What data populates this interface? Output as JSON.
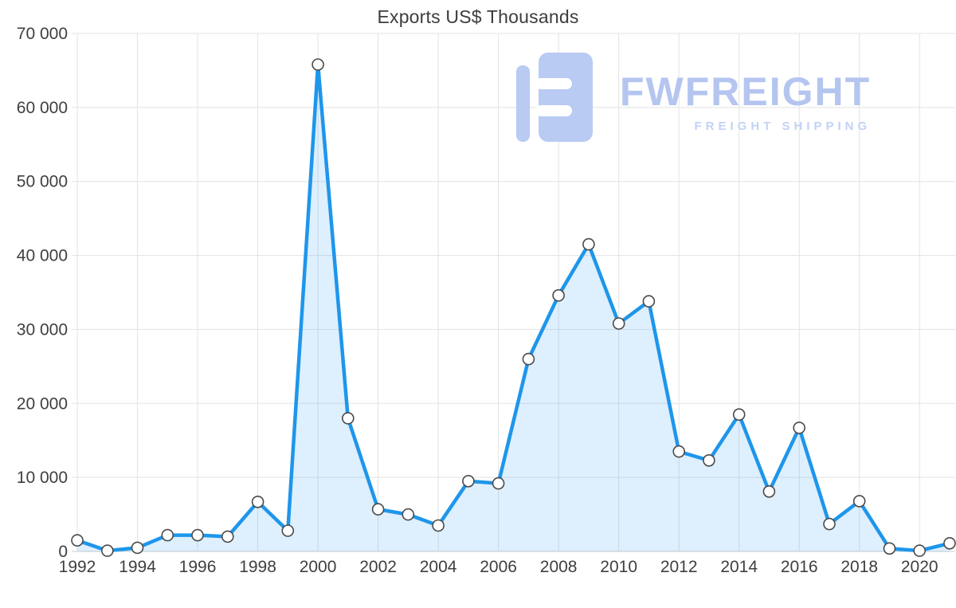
{
  "page": {
    "title": "Exports US$ Thousands"
  },
  "watermark": {
    "brand": "FWFREIGHT",
    "tagline": "FREIGHT SHIPPING"
  },
  "colors": {
    "line": "#1e96eb",
    "area_fill": "rgba(33,150,243,0.15)",
    "marker_fill": "#ffffff",
    "marker_stroke": "#4a4a4a",
    "grid": "#e3e3e3",
    "axis_line": "#cccccc",
    "axis_text": "#3f3f3f",
    "watermark_logo": "#b9cbf3"
  },
  "chart_data": {
    "type": "area",
    "title": "Exports US$ Thousands",
    "xlabel": "",
    "ylabel": "",
    "x": [
      1992,
      1993,
      1994,
      1995,
      1996,
      1997,
      1998,
      1999,
      2000,
      2001,
      2002,
      2003,
      2004,
      2005,
      2006,
      2007,
      2008,
      2009,
      2010,
      2011,
      2012,
      2013,
      2014,
      2015,
      2016,
      2017,
      2018,
      2019,
      2020,
      2021
    ],
    "values": [
      1500,
      100,
      500,
      2200,
      2200,
      2000,
      6700,
      2800,
      65800,
      18000,
      5700,
      5000,
      3500,
      9500,
      9200,
      26000,
      34600,
      41500,
      30800,
      33800,
      13500,
      12300,
      18500,
      8100,
      16700,
      3700,
      6800,
      400,
      100,
      1100
    ],
    "ylim": [
      0,
      70000
    ],
    "y_ticks": [
      0,
      10000,
      20000,
      30000,
      40000,
      50000,
      60000,
      70000
    ],
    "y_tick_labels": [
      "0",
      "10 000",
      "20 000",
      "30 000",
      "40 000",
      "50 000",
      "60 000",
      "70 000"
    ],
    "x_ticks": [
      1992,
      1994,
      1996,
      1998,
      2000,
      2002,
      2004,
      2006,
      2008,
      2010,
      2012,
      2014,
      2016,
      2018,
      2020
    ],
    "grid": true,
    "legend_position": "none",
    "marker": "circle"
  }
}
